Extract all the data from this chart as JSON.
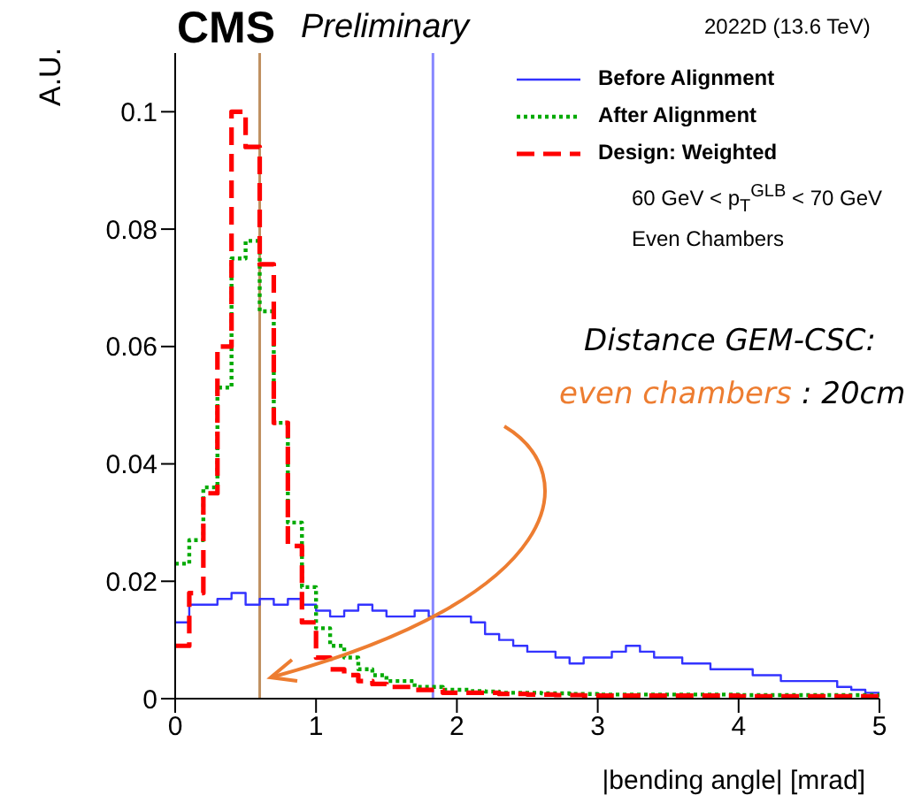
{
  "chart_data": {
    "type": "histogram",
    "title": "CMS",
    "subtitle": "Preliminary",
    "ylabel": "A.U.",
    "xlabel": "|bending angle| [mrad]",
    "annotations": [
      "2022D  (13.6 TeV)",
      "60 GeV < p$_{T}$$^{GLB}$ < 70 GeV",
      "Even Chambers",
      "Distance GEM-CSC:",
      "even chambers",
      ": 20cm"
    ],
    "bins": [
      0,
      0.1,
      0.2,
      0.3,
      0.4,
      0.5,
      0.6,
      0.7,
      0.8,
      0.9,
      1,
      1.1,
      1.2,
      1.3,
      1.4,
      1.5,
      1.6,
      1.7,
      1.8,
      1.9,
      2,
      2.1,
      2.2,
      2.3,
      2.4,
      2.5,
      2.6,
      2.7,
      2.8,
      2.9,
      3,
      3.1,
      3.2,
      3.3,
      3.4,
      3.5,
      3.6,
      3.7,
      3.8,
      3.9,
      4,
      4.1,
      4.2,
      4.3,
      4.4,
      4.5,
      4.6,
      4.7,
      4.8,
      4.9,
      5
    ],
    "series": [
      {
        "name": "Before Alignment",
        "color": "#3333ff",
        "line_style": "solid",
        "values": [
          0.013,
          0.016,
          0.016,
          0.017,
          0.018,
          0.016,
          0.017,
          0.016,
          0.017,
          0.016,
          0.015,
          0.014,
          0.015,
          0.016,
          0.015,
          0.014,
          0.014,
          0.015,
          0.014,
          0.014,
          0.014,
          0.013,
          0.011,
          0.01,
          0.009,
          0.008,
          0.008,
          0.007,
          0.006,
          0.007,
          0.007,
          0.008,
          0.009,
          0.008,
          0.007,
          0.007,
          0.006,
          0.006,
          0.005,
          0.005,
          0.005,
          0.004,
          0.004,
          0.003,
          0.003,
          0.003,
          0.003,
          0.002,
          0.0015,
          0.001
        ]
      },
      {
        "name": "After Alignment",
        "color": "#00aa00",
        "line_style": "dotted",
        "values": [
          0.023,
          0.027,
          0.036,
          0.053,
          0.075,
          0.078,
          0.066,
          0.047,
          0.03,
          0.019,
          0.012,
          0.009,
          0.007,
          0.005,
          0.004,
          0.003,
          0.003,
          0.002,
          0.002,
          0.0015,
          0.0015,
          0.0013,
          0.0012,
          0.001,
          0.001,
          0.001,
          0.0009,
          0.0009,
          0.0008,
          0.0008,
          0.0007,
          0.0007,
          0.0007,
          0.0007,
          0.0007,
          0.0007,
          0.0007,
          0.0007,
          0.0007,
          0.0007,
          0.0006,
          0.0006,
          0.0006,
          0.0006,
          0.0006,
          0.0006,
          0.0006,
          0.0006,
          0.0006,
          0.0006
        ]
      },
      {
        "name": "Design: Weighted",
        "color": "#ff0000",
        "line_style": "dashed",
        "values": [
          0.009,
          0.018,
          0.035,
          0.06,
          0.1,
          0.094,
          0.074,
          0.047,
          0.026,
          0.013,
          0.007,
          0.005,
          0.004,
          0.003,
          0.0025,
          0.002,
          0.002,
          0.0015,
          0.0015,
          0.001,
          0.001,
          0.001,
          0.001,
          0.0008,
          0.0008,
          0.0007,
          0.0007,
          0.0006,
          0.0006,
          0.0005,
          0.0005,
          0.0005,
          0.0005,
          0.0005,
          0.0005,
          0.0005,
          0.0005,
          0.0005,
          0.0005,
          0.0005,
          0.0004,
          0.0004,
          0.0004,
          0.0004,
          0.0004,
          0.0004,
          0.0004,
          0.0004,
          0.0004,
          0.0004
        ]
      }
    ],
    "ref_lines": [
      {
        "axis": "x",
        "value": 0.6,
        "color": "#c09060"
      },
      {
        "axis": "x",
        "value": 1.83,
        "color": "#8888ff"
      }
    ],
    "xlim": [
      0,
      5
    ],
    "xticks": [
      0,
      1,
      2,
      3,
      4,
      5
    ],
    "ylim": [
      0,
      0.11
    ],
    "yticks": [
      0,
      0.02,
      0.04,
      0.06,
      0.08,
      0.1
    ],
    "legend": "top right",
    "grid": false
  }
}
